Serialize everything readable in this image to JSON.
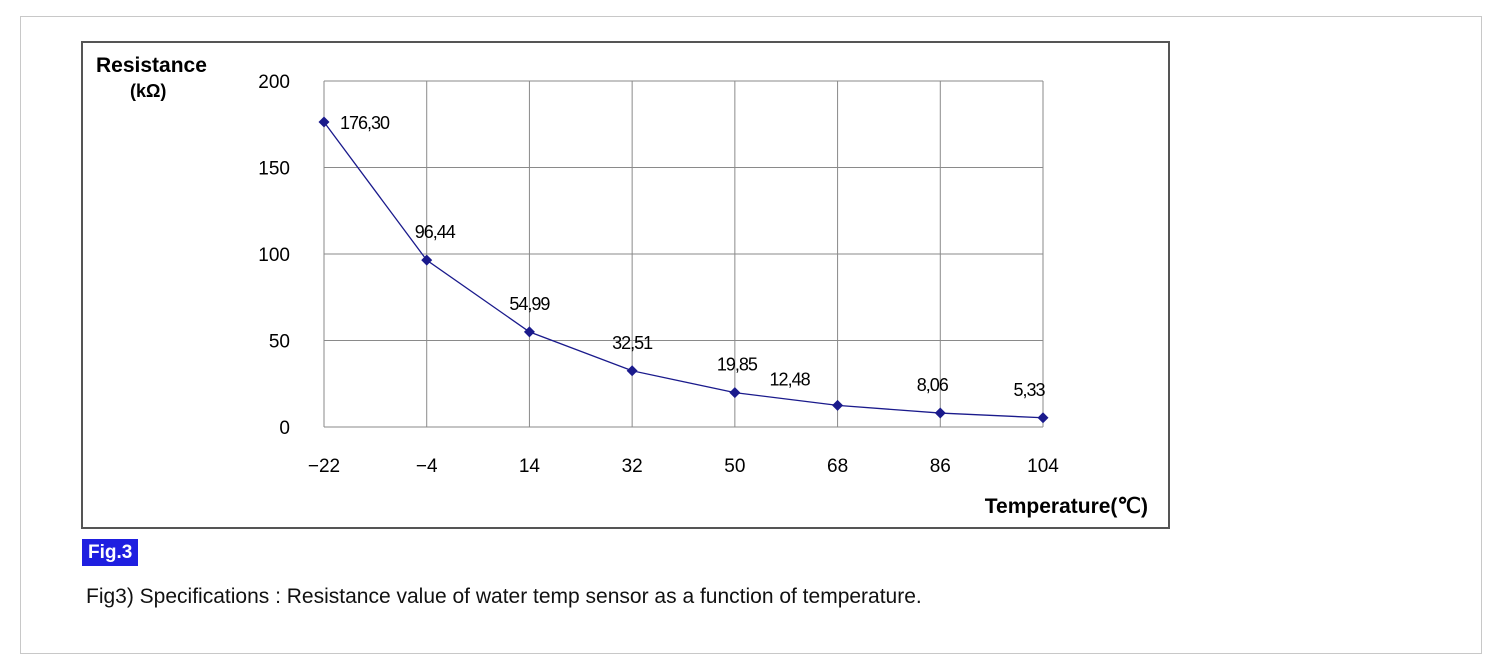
{
  "figure": {
    "tag": "Fig.3",
    "caption": "Fig3) Specifications : Resistance value of water temp sensor as a function of temperature."
  },
  "chart_data": {
    "type": "line",
    "title": "",
    "ylabel": "Resistance",
    "yunit": "(kΩ)",
    "xlabel": "Temperature(℃)",
    "x": [
      -22,
      -4,
      14,
      32,
      50,
      68,
      86,
      104
    ],
    "x_tick_labels": [
      "−22",
      "−4",
      "14",
      "32",
      "50",
      "68",
      "86",
      "104"
    ],
    "y_ticks": [
      0,
      50,
      100,
      150,
      200
    ],
    "ylim": [
      0,
      200
    ],
    "grid": true,
    "series": [
      {
        "values": [
          176.3,
          96.44,
          54.99,
          32.51,
          19.85,
          12.48,
          8.06,
          5.33
        ],
        "data_labels": [
          "176,30",
          "96,44",
          "54,99",
          "32,51",
          "19,85",
          "12,48",
          "8,06",
          "5,33"
        ],
        "color": "#1a1a8c"
      }
    ]
  }
}
